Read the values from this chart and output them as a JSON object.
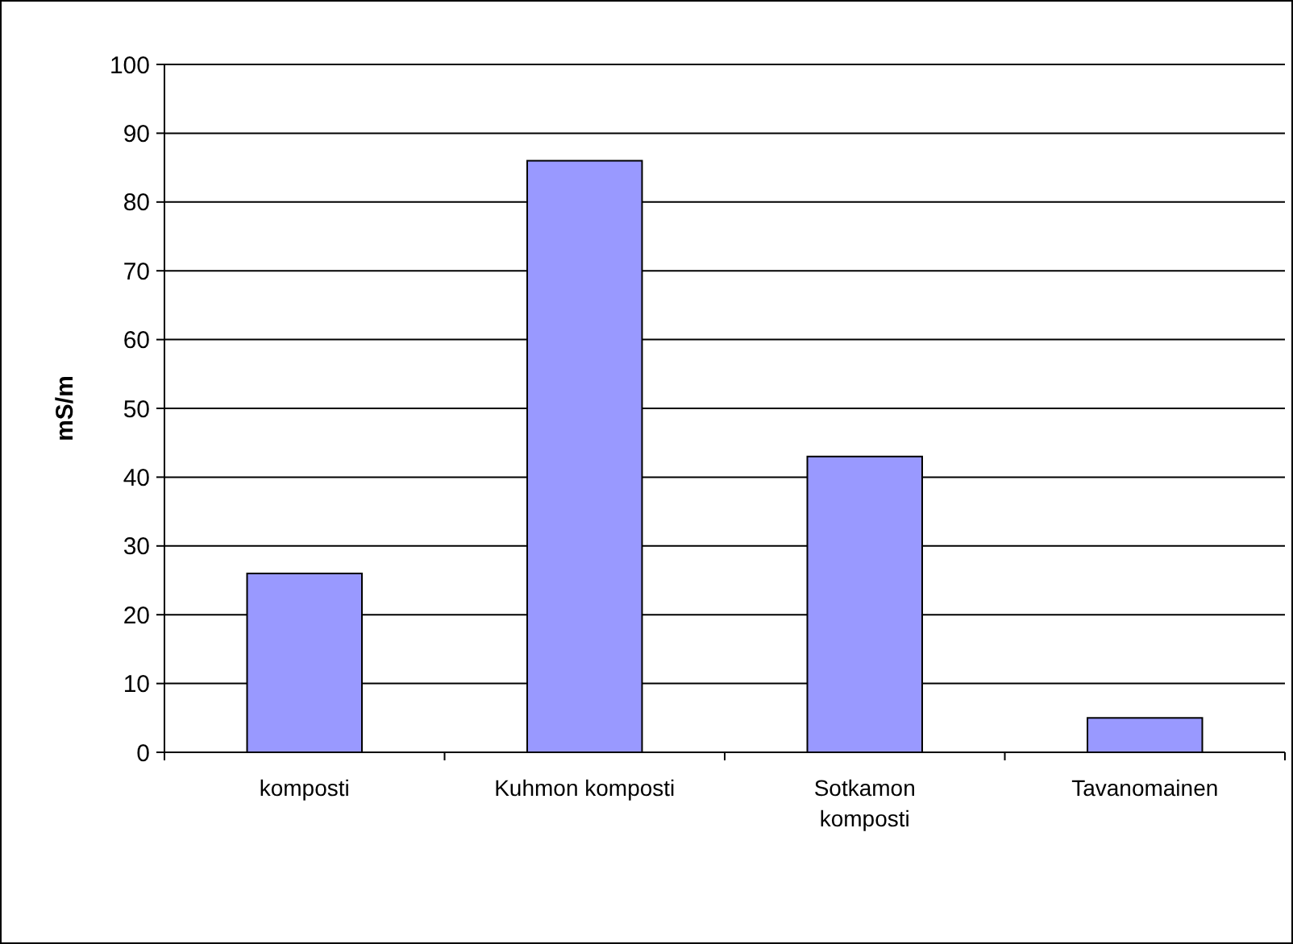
{
  "chart_data": {
    "type": "bar",
    "ylabel": "mS/m",
    "categories": [
      "komposti",
      "Kuhmon komposti",
      "Sotkamon komposti",
      "Tavanomainen"
    ],
    "values": [
      26,
      86,
      43,
      5
    ],
    "color": "#9999ff",
    "ylim": [
      0,
      100
    ],
    "yticks": [
      0,
      10,
      20,
      30,
      40,
      50,
      60,
      70,
      80,
      90,
      100
    ],
    "grid": "y"
  }
}
